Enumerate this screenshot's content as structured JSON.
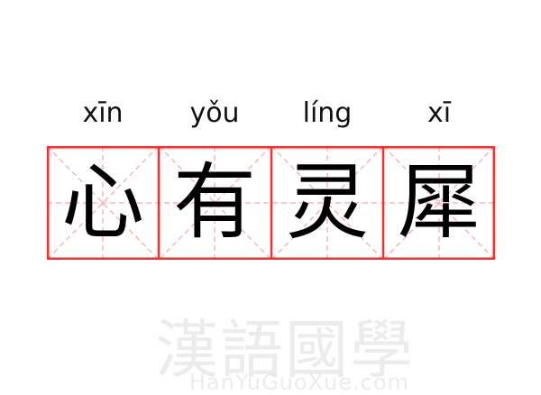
{
  "entries": [
    {
      "pinyin": "xīn",
      "char": "心"
    },
    {
      "pinyin": "yǒu",
      "char": "有"
    },
    {
      "pinyin": "líng",
      "char": "灵"
    },
    {
      "pinyin": "xī",
      "char": "犀"
    }
  ],
  "watermark": {
    "logo": "漢語國學",
    "site": "HanYuGuoXue.com"
  },
  "colors": {
    "border": "#ff2a2a",
    "guide": "#f7a8a8",
    "text": "#000000"
  }
}
